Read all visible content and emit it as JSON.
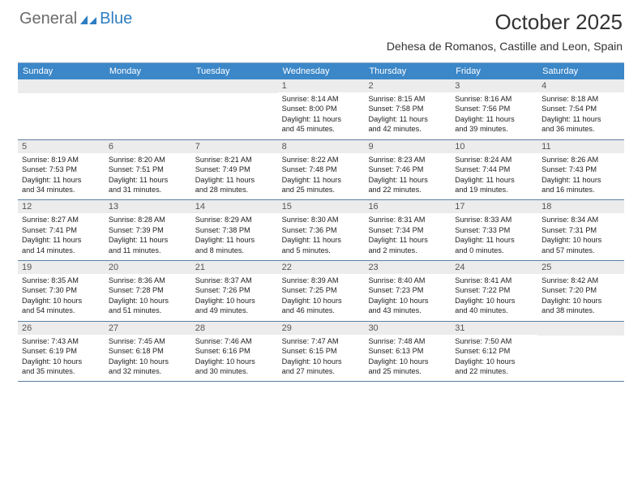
{
  "logo": {
    "general": "General",
    "blue": "Blue"
  },
  "title": "October 2025",
  "location": "Dehesa de Romanos, Castille and Leon, Spain",
  "colors": {
    "header_bg": "#3b87c8",
    "header_text": "#ffffff",
    "daynum_bg": "#ececec",
    "daynum_text": "#555555",
    "body_text": "#222222",
    "border": "#5b7fa3",
    "logo_gray": "#6b6b6b",
    "logo_blue": "#2f7ec2"
  },
  "day_headers": [
    "Sunday",
    "Monday",
    "Tuesday",
    "Wednesday",
    "Thursday",
    "Friday",
    "Saturday"
  ],
  "weeks": [
    [
      {
        "n": "",
        "lines": []
      },
      {
        "n": "",
        "lines": []
      },
      {
        "n": "",
        "lines": []
      },
      {
        "n": "1",
        "lines": [
          "Sunrise: 8:14 AM",
          "Sunset: 8:00 PM",
          "Daylight: 11 hours",
          "and 45 minutes."
        ]
      },
      {
        "n": "2",
        "lines": [
          "Sunrise: 8:15 AM",
          "Sunset: 7:58 PM",
          "Daylight: 11 hours",
          "and 42 minutes."
        ]
      },
      {
        "n": "3",
        "lines": [
          "Sunrise: 8:16 AM",
          "Sunset: 7:56 PM",
          "Daylight: 11 hours",
          "and 39 minutes."
        ]
      },
      {
        "n": "4",
        "lines": [
          "Sunrise: 8:18 AM",
          "Sunset: 7:54 PM",
          "Daylight: 11 hours",
          "and 36 minutes."
        ]
      }
    ],
    [
      {
        "n": "5",
        "lines": [
          "Sunrise: 8:19 AM",
          "Sunset: 7:53 PM",
          "Daylight: 11 hours",
          "and 34 minutes."
        ]
      },
      {
        "n": "6",
        "lines": [
          "Sunrise: 8:20 AM",
          "Sunset: 7:51 PM",
          "Daylight: 11 hours",
          "and 31 minutes."
        ]
      },
      {
        "n": "7",
        "lines": [
          "Sunrise: 8:21 AM",
          "Sunset: 7:49 PM",
          "Daylight: 11 hours",
          "and 28 minutes."
        ]
      },
      {
        "n": "8",
        "lines": [
          "Sunrise: 8:22 AM",
          "Sunset: 7:48 PM",
          "Daylight: 11 hours",
          "and 25 minutes."
        ]
      },
      {
        "n": "9",
        "lines": [
          "Sunrise: 8:23 AM",
          "Sunset: 7:46 PM",
          "Daylight: 11 hours",
          "and 22 minutes."
        ]
      },
      {
        "n": "10",
        "lines": [
          "Sunrise: 8:24 AM",
          "Sunset: 7:44 PM",
          "Daylight: 11 hours",
          "and 19 minutes."
        ]
      },
      {
        "n": "11",
        "lines": [
          "Sunrise: 8:26 AM",
          "Sunset: 7:43 PM",
          "Daylight: 11 hours",
          "and 16 minutes."
        ]
      }
    ],
    [
      {
        "n": "12",
        "lines": [
          "Sunrise: 8:27 AM",
          "Sunset: 7:41 PM",
          "Daylight: 11 hours",
          "and 14 minutes."
        ]
      },
      {
        "n": "13",
        "lines": [
          "Sunrise: 8:28 AM",
          "Sunset: 7:39 PM",
          "Daylight: 11 hours",
          "and 11 minutes."
        ]
      },
      {
        "n": "14",
        "lines": [
          "Sunrise: 8:29 AM",
          "Sunset: 7:38 PM",
          "Daylight: 11 hours",
          "and 8 minutes."
        ]
      },
      {
        "n": "15",
        "lines": [
          "Sunrise: 8:30 AM",
          "Sunset: 7:36 PM",
          "Daylight: 11 hours",
          "and 5 minutes."
        ]
      },
      {
        "n": "16",
        "lines": [
          "Sunrise: 8:31 AM",
          "Sunset: 7:34 PM",
          "Daylight: 11 hours",
          "and 2 minutes."
        ]
      },
      {
        "n": "17",
        "lines": [
          "Sunrise: 8:33 AM",
          "Sunset: 7:33 PM",
          "Daylight: 11 hours",
          "and 0 minutes."
        ]
      },
      {
        "n": "18",
        "lines": [
          "Sunrise: 8:34 AM",
          "Sunset: 7:31 PM",
          "Daylight: 10 hours",
          "and 57 minutes."
        ]
      }
    ],
    [
      {
        "n": "19",
        "lines": [
          "Sunrise: 8:35 AM",
          "Sunset: 7:30 PM",
          "Daylight: 10 hours",
          "and 54 minutes."
        ]
      },
      {
        "n": "20",
        "lines": [
          "Sunrise: 8:36 AM",
          "Sunset: 7:28 PM",
          "Daylight: 10 hours",
          "and 51 minutes."
        ]
      },
      {
        "n": "21",
        "lines": [
          "Sunrise: 8:37 AM",
          "Sunset: 7:26 PM",
          "Daylight: 10 hours",
          "and 49 minutes."
        ]
      },
      {
        "n": "22",
        "lines": [
          "Sunrise: 8:39 AM",
          "Sunset: 7:25 PM",
          "Daylight: 10 hours",
          "and 46 minutes."
        ]
      },
      {
        "n": "23",
        "lines": [
          "Sunrise: 8:40 AM",
          "Sunset: 7:23 PM",
          "Daylight: 10 hours",
          "and 43 minutes."
        ]
      },
      {
        "n": "24",
        "lines": [
          "Sunrise: 8:41 AM",
          "Sunset: 7:22 PM",
          "Daylight: 10 hours",
          "and 40 minutes."
        ]
      },
      {
        "n": "25",
        "lines": [
          "Sunrise: 8:42 AM",
          "Sunset: 7:20 PM",
          "Daylight: 10 hours",
          "and 38 minutes."
        ]
      }
    ],
    [
      {
        "n": "26",
        "lines": [
          "Sunrise: 7:43 AM",
          "Sunset: 6:19 PM",
          "Daylight: 10 hours",
          "and 35 minutes."
        ]
      },
      {
        "n": "27",
        "lines": [
          "Sunrise: 7:45 AM",
          "Sunset: 6:18 PM",
          "Daylight: 10 hours",
          "and 32 minutes."
        ]
      },
      {
        "n": "28",
        "lines": [
          "Sunrise: 7:46 AM",
          "Sunset: 6:16 PM",
          "Daylight: 10 hours",
          "and 30 minutes."
        ]
      },
      {
        "n": "29",
        "lines": [
          "Sunrise: 7:47 AM",
          "Sunset: 6:15 PM",
          "Daylight: 10 hours",
          "and 27 minutes."
        ]
      },
      {
        "n": "30",
        "lines": [
          "Sunrise: 7:48 AM",
          "Sunset: 6:13 PM",
          "Daylight: 10 hours",
          "and 25 minutes."
        ]
      },
      {
        "n": "31",
        "lines": [
          "Sunrise: 7:50 AM",
          "Sunset: 6:12 PM",
          "Daylight: 10 hours",
          "and 22 minutes."
        ]
      },
      {
        "n": "",
        "lines": []
      }
    ]
  ]
}
